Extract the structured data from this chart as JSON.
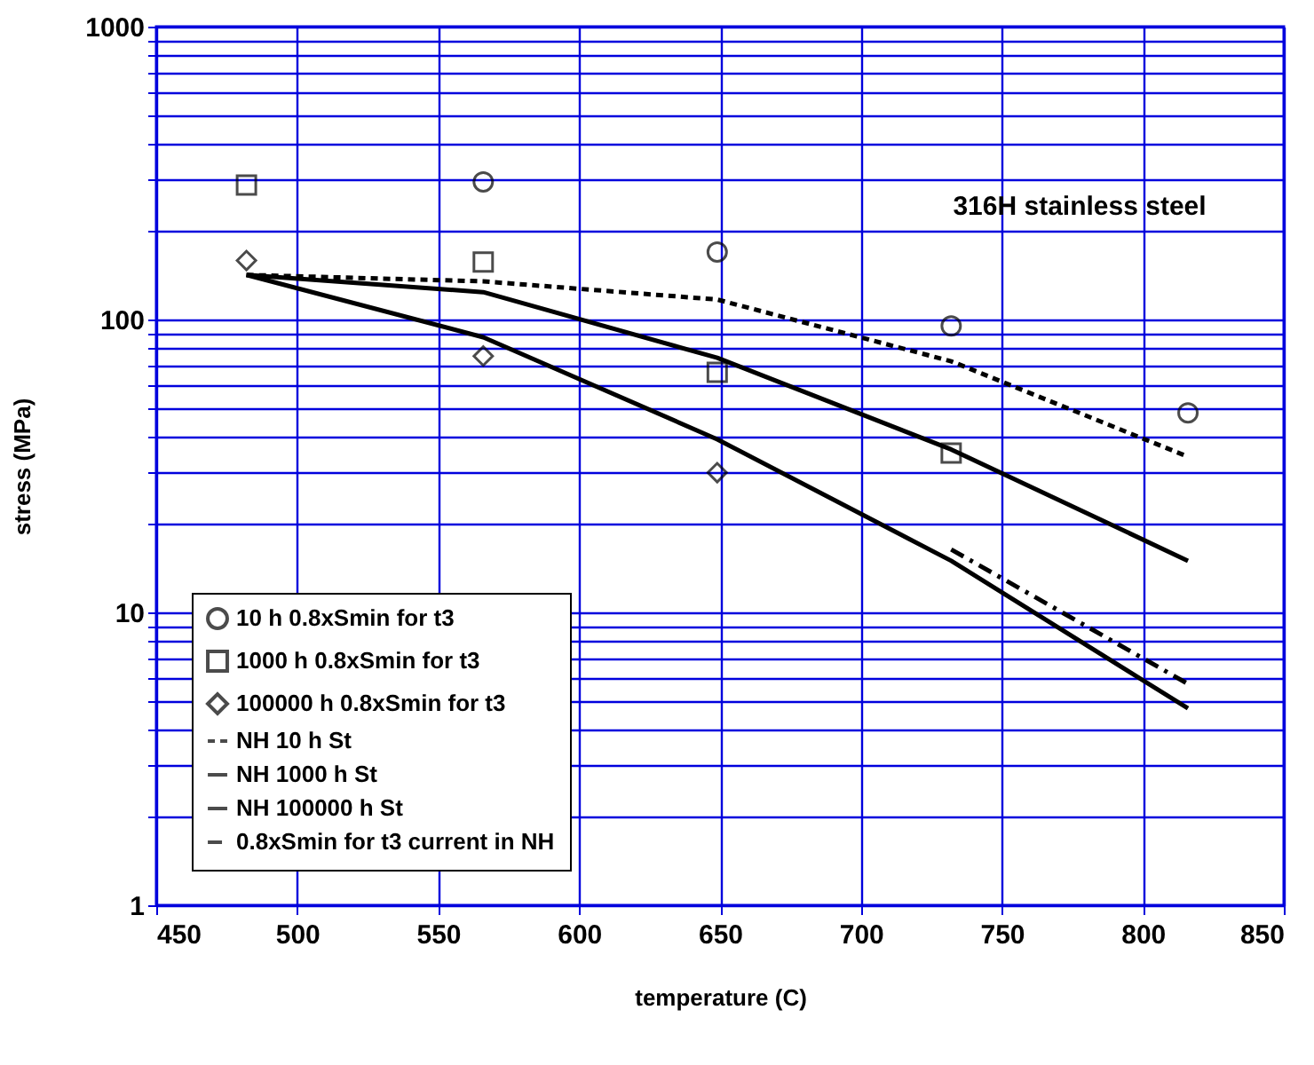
{
  "chart_data": {
    "type": "line",
    "xlabel": "temperature (C)",
    "ylabel": "stress (MPa)",
    "log": "y",
    "xlim": [
      450,
      850
    ],
    "xticks": [
      450,
      500,
      550,
      600,
      650,
      700,
      750,
      800,
      850
    ],
    "ylim": [
      1,
      1000
    ],
    "yticks": [
      1,
      {
        "value": 2,
        "label": null
      },
      {
        "value": 3,
        "label": null
      },
      {
        "value": 4,
        "label": null
      },
      {
        "value": 5,
        "label": null
      },
      {
        "value": 6,
        "label": null
      },
      {
        "value": 7,
        "label": null
      },
      {
        "value": 8,
        "label": null
      },
      {
        "value": 9,
        "label": null
      },
      10,
      {
        "value": 20,
        "label": null
      },
      {
        "value": 30,
        "label": null
      },
      {
        "value": 40,
        "label": null
      },
      {
        "value": 50,
        "label": null
      },
      {
        "value": 60,
        "label": null
      },
      {
        "value": 70,
        "label": null
      },
      {
        "value": 80,
        "label": null
      },
      {
        "value": 90,
        "label": null
      },
      100,
      {
        "value": 200,
        "label": null
      },
      {
        "value": 300,
        "label": null
      },
      {
        "value": 400,
        "label": null
      },
      {
        "value": 500,
        "label": null
      },
      {
        "value": 600,
        "label": null
      },
      {
        "value": 700,
        "label": null
      },
      {
        "value": 800,
        "label": null
      },
      {
        "value": 900,
        "label": null
      },
      1000
    ],
    "grid": true,
    "legend": "bottom left",
    "annotations": [
      "316H stainless steel"
    ],
    "series": [
      {
        "name": "10 h 0.8xSmin for t3",
        "type": "scatter",
        "marker": "circle",
        "color": "#000000",
        "x": [
          566,
          649,
          732,
          816
        ],
        "values": [
          295,
          170,
          95,
          48
        ]
      },
      {
        "name": "1000 h 0.8xSmin for t3",
        "type": "scatter",
        "marker": "square",
        "color": "#000000",
        "x": [
          482,
          566,
          649,
          732
        ],
        "values": [
          288,
          157,
          66,
          35
        ]
      },
      {
        "name": "100000 h 0.8xSmin for t3",
        "type": "scatter",
        "marker": "diamond",
        "color": "#000000",
        "x": [
          482,
          566,
          649
        ],
        "values": [
          159,
          75,
          30
        ]
      },
      {
        "name": "NH 10 h St",
        "line_style": "dashed",
        "color": "#000000",
        "x": [
          482,
          566,
          649,
          732,
          816
        ],
        "values": [
          142,
          135,
          117,
          72,
          34
        ]
      },
      {
        "name": "NH 1000 h St",
        "line_style": "solid",
        "color": "#000000",
        "x": [
          482,
          566,
          649,
          732,
          816
        ],
        "values": [
          142,
          124,
          74,
          36,
          15
        ]
      },
      {
        "name": "NH 100000 h St",
        "line_style": "solid",
        "color": "#000000",
        "x": [
          482,
          566,
          649,
          732,
          816
        ],
        "values": [
          142,
          87,
          39,
          15,
          4.7
        ]
      },
      {
        "name": "0.8xSmin for t3 current in NH",
        "line_style": "dashdot",
        "color": "#000000",
        "x": [
          732,
          816
        ],
        "values": [
          16.4,
          5.7
        ]
      }
    ]
  }
}
